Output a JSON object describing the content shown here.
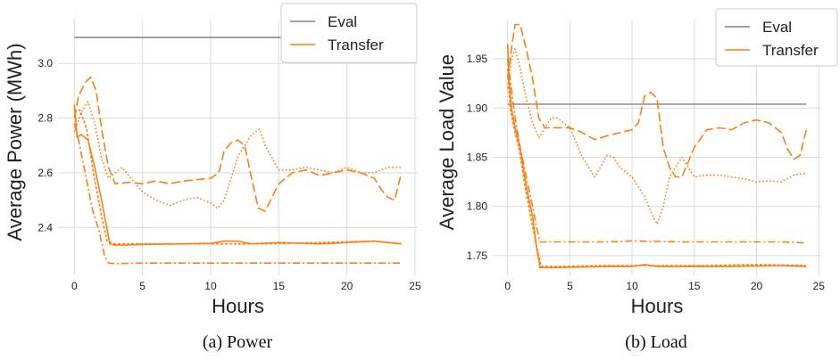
{
  "chart_data": [
    {
      "type": "line",
      "caption": "(a) Power",
      "xlabel": "Hours",
      "ylabel": "Average Power (MWh)",
      "xlim": [
        -1.2,
        25.2
      ],
      "ylim": [
        2.225,
        3.16
      ],
      "xticks": [
        0,
        5,
        10,
        15,
        20,
        25
      ],
      "yticks": [
        2.4,
        2.6,
        2.8,
        3.0
      ],
      "grid": true,
      "legend": {
        "position": "top-right",
        "entries": [
          "Eval",
          "Transfer"
        ]
      },
      "colors": {
        "eval": "#808080",
        "transfer": "#ff7f0e"
      },
      "series": [
        {
          "name": "Eval",
          "style": "solid",
          "color": "#808080",
          "x": [
            0,
            24
          ],
          "y": [
            3.095,
            3.095
          ]
        },
        {
          "style": "solid",
          "color": "#ff7f0e",
          "x": [
            0,
            0.2,
            0.5,
            1,
            1.5,
            2,
            2.3,
            2.6,
            3,
            5,
            8,
            10,
            11,
            12,
            13,
            15,
            18,
            20,
            22,
            24
          ],
          "y": [
            2.85,
            2.73,
            2.74,
            2.72,
            2.62,
            2.5,
            2.42,
            2.34,
            2.335,
            2.338,
            2.34,
            2.342,
            2.35,
            2.35,
            2.34,
            2.345,
            2.34,
            2.345,
            2.35,
            2.34
          ]
        },
        {
          "style": "dashed",
          "color": "#ff7f0e",
          "x": [
            0,
            0.3,
            0.8,
            1.2,
            1.6,
            2,
            2.5,
            3,
            4,
            5,
            6,
            7,
            8,
            9,
            10,
            10.6,
            11,
            11.5,
            12,
            12.5,
            13,
            13.5,
            14,
            15,
            16,
            17,
            18,
            19,
            20,
            21,
            22,
            22.5,
            23,
            23.5,
            24
          ],
          "y": [
            2.8,
            2.88,
            2.93,
            2.95,
            2.9,
            2.76,
            2.62,
            2.56,
            2.565,
            2.56,
            2.57,
            2.56,
            2.57,
            2.575,
            2.58,
            2.6,
            2.68,
            2.71,
            2.72,
            2.7,
            2.58,
            2.47,
            2.46,
            2.56,
            2.6,
            2.61,
            2.59,
            2.6,
            2.61,
            2.6,
            2.58,
            2.54,
            2.51,
            2.5,
            2.6
          ]
        },
        {
          "style": "dotted",
          "color": "#ff7f0e",
          "x": [
            0,
            0.5,
            1,
            1.5,
            2,
            2.5,
            3,
            3.5,
            4,
            5,
            6,
            7,
            8,
            9,
            10,
            10.5,
            11,
            12,
            13,
            13.6,
            14,
            15,
            16,
            17,
            18,
            19,
            20,
            21,
            22,
            23,
            24
          ],
          "y": [
            2.75,
            2.82,
            2.86,
            2.78,
            2.65,
            2.58,
            2.6,
            2.62,
            2.59,
            2.53,
            2.5,
            2.48,
            2.5,
            2.51,
            2.49,
            2.47,
            2.5,
            2.66,
            2.74,
            2.76,
            2.7,
            2.61,
            2.61,
            2.62,
            2.61,
            2.6,
            2.62,
            2.6,
            2.6,
            2.62,
            2.62
          ]
        },
        {
          "style": "dashdot",
          "color": "#ff7f0e",
          "x": [
            0,
            0.3,
            0.8,
            1.3,
            1.8,
            2.2,
            2.5,
            3,
            5,
            8,
            10,
            15,
            20,
            24
          ],
          "y": [
            2.78,
            2.72,
            2.6,
            2.47,
            2.39,
            2.3,
            2.27,
            2.268,
            2.27,
            2.27,
            2.27,
            2.27,
            2.27,
            2.27
          ]
        },
        {
          "style": "loosedash",
          "color": "#ff7f0e",
          "x": [
            0,
            0.4,
            0.9,
            1.4,
            2,
            2.4,
            3,
            6,
            10,
            14,
            18,
            22,
            24
          ],
          "y": [
            2.82,
            2.83,
            2.76,
            2.6,
            2.44,
            2.35,
            2.34,
            2.34,
            2.34,
            2.34,
            2.345,
            2.35,
            2.34
          ]
        }
      ]
    },
    {
      "type": "line",
      "caption": "(b) Load",
      "xlabel": "Hours",
      "ylabel": "Average Load Value",
      "xlim": [
        -1.2,
        25.2
      ],
      "ylim": [
        1.73,
        1.99
      ],
      "xticks": [
        0,
        5,
        10,
        15,
        20,
        25
      ],
      "yticks": [
        1.75,
        1.8,
        1.85,
        1.9,
        1.95
      ],
      "grid": true,
      "legend": {
        "position": "top-right",
        "entries": [
          "Eval",
          "Transfer"
        ]
      },
      "colors": {
        "eval": "#808080",
        "transfer": "#ff7f0e"
      },
      "series": [
        {
          "name": "Eval",
          "style": "solid",
          "color": "#808080",
          "x": [
            0,
            24
          ],
          "y": [
            1.904,
            1.904
          ]
        },
        {
          "style": "solid",
          "color": "#ff7f0e",
          "x": [
            0,
            0.1,
            0.3,
            0.6,
            1,
            1.5,
            2,
            2.3,
            2.6,
            4,
            8,
            10,
            11,
            12,
            14,
            18,
            22,
            24
          ],
          "y": [
            1.965,
            1.93,
            1.9,
            1.88,
            1.86,
            1.82,
            1.79,
            1.76,
            1.738,
            1.738,
            1.739,
            1.739,
            1.741,
            1.739,
            1.739,
            1.739,
            1.74,
            1.739
          ]
        },
        {
          "style": "dashed",
          "color": "#ff7f0e",
          "x": [
            0,
            0.3,
            0.6,
            1,
            1.5,
            2,
            2.5,
            3,
            4,
            5,
            6,
            7,
            8,
            9,
            10,
            10.5,
            11,
            11.5,
            12,
            12.5,
            13,
            13.5,
            14,
            15,
            16,
            17,
            18,
            19,
            20,
            21,
            22,
            22.5,
            23,
            23.5,
            24
          ],
          "y": [
            1.93,
            1.96,
            1.985,
            1.985,
            1.96,
            1.93,
            1.89,
            1.88,
            1.88,
            1.88,
            1.875,
            1.868,
            1.872,
            1.875,
            1.878,
            1.885,
            1.912,
            1.916,
            1.91,
            1.86,
            1.84,
            1.83,
            1.83,
            1.86,
            1.878,
            1.88,
            1.878,
            1.885,
            1.888,
            1.885,
            1.875,
            1.858,
            1.848,
            1.852,
            1.878
          ]
        },
        {
          "style": "dotted",
          "color": "#ff7f0e",
          "x": [
            0,
            0.3,
            0.6,
            1,
            1.5,
            2,
            2.5,
            3,
            3.5,
            4,
            5,
            6,
            7,
            8,
            8.5,
            9,
            10,
            11,
            11.5,
            12,
            12.5,
            13,
            14,
            15,
            16,
            17,
            18,
            19,
            20,
            21,
            22,
            23,
            24
          ],
          "y": [
            1.92,
            1.95,
            1.96,
            1.94,
            1.91,
            1.885,
            1.87,
            1.88,
            1.89,
            1.89,
            1.88,
            1.85,
            1.83,
            1.852,
            1.85,
            1.84,
            1.83,
            1.81,
            1.795,
            1.782,
            1.8,
            1.83,
            1.85,
            1.83,
            1.832,
            1.832,
            1.83,
            1.828,
            1.825,
            1.826,
            1.825,
            1.832,
            1.834
          ]
        },
        {
          "style": "dashdot",
          "color": "#ff7f0e",
          "x": [
            0,
            0.3,
            0.6,
            1,
            1.5,
            2,
            2.3,
            2.6,
            4,
            8,
            10,
            14,
            18,
            22,
            24
          ],
          "y": [
            1.95,
            1.92,
            1.89,
            1.86,
            1.83,
            1.8,
            1.78,
            1.764,
            1.764,
            1.764,
            1.765,
            1.764,
            1.764,
            1.764,
            1.763
          ]
        },
        {
          "style": "loosedash",
          "color": "#ff7f0e",
          "x": [
            0,
            0.2,
            0.5,
            0.9,
            1.4,
            2,
            2.4,
            2.7,
            4,
            8,
            12,
            16,
            20,
            24
          ],
          "y": [
            1.94,
            1.9,
            1.88,
            1.86,
            1.82,
            1.78,
            1.755,
            1.739,
            1.739,
            1.74,
            1.74,
            1.74,
            1.741,
            1.74
          ]
        }
      ]
    }
  ]
}
